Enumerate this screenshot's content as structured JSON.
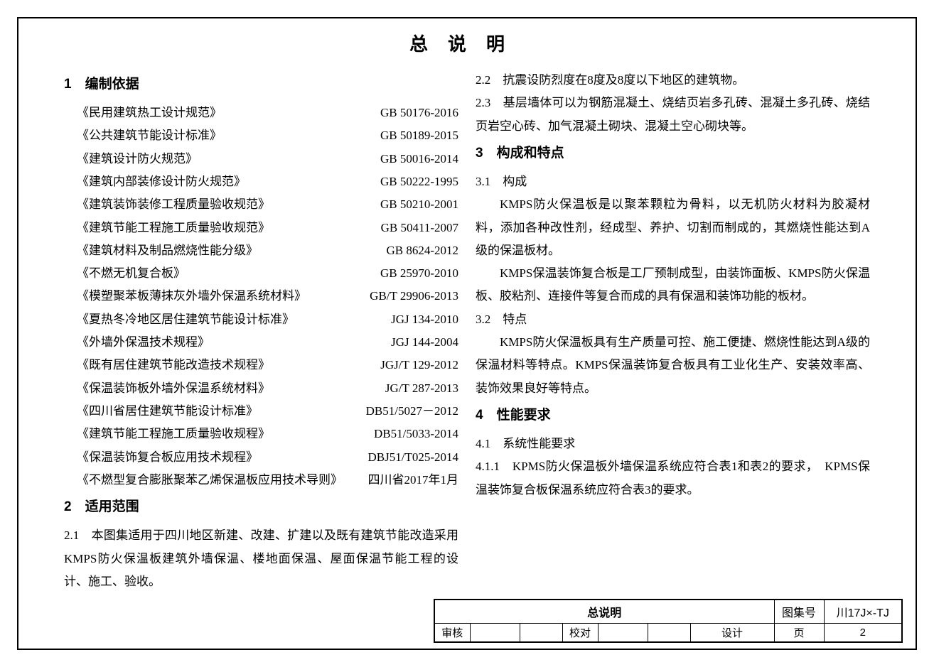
{
  "page_title": "总说明",
  "section1": {
    "num": "1",
    "title": "编制依据",
    "standards": [
      {
        "name": "《民用建筑热工设计规范》",
        "code": "GB 50176-2016"
      },
      {
        "name": "《公共建筑节能设计标准》",
        "code": "GB 50189-2015"
      },
      {
        "name": "《建筑设计防火规范》",
        "code": "GB 50016-2014"
      },
      {
        "name": "《建筑内部装修设计防火规范》",
        "code": "GB 50222-1995"
      },
      {
        "name": "《建筑装饰装修工程质量验收规范》",
        "code": "GB 50210-2001"
      },
      {
        "name": "《建筑节能工程施工质量验收规范》",
        "code": "GB 50411-2007"
      },
      {
        "name": "《建筑材料及制品燃烧性能分级》",
        "code": "GB 8624-2012"
      },
      {
        "name": "《不燃无机复合板》",
        "code": "GB 25970-2010"
      },
      {
        "name": "《模塑聚苯板薄抹灰外墙外保温系统材料》",
        "code": "GB/T 29906-2013"
      },
      {
        "name": "《夏热冬冷地区居住建筑节能设计标准》",
        "code": "JGJ 134-2010"
      },
      {
        "name": "《外墙外保温技术规程》",
        "code": "JGJ 144-2004"
      },
      {
        "name": "《既有居住建筑节能改造技术规程》",
        "code": "JGJ/T 129-2012"
      },
      {
        "name": "《保温装饰板外墙外保温系统材料》",
        "code": "JG/T 287-2013"
      },
      {
        "name": "《四川省居住建筑节能设计标准》",
        "code": "DB51/5027－2012"
      },
      {
        "name": "《建筑节能工程施工质量验收规程》",
        "code": "DB51/5033-2014"
      },
      {
        "name": "《保温装饰复合板应用技术规程》",
        "code": "DBJ51/T025-2014"
      },
      {
        "name": "《不燃型复合膨胀聚苯乙烯保温板应用技术导则》",
        "code": "四川省2017年1月"
      }
    ]
  },
  "section2": {
    "num": "2",
    "title": "适用范围",
    "p2_1": "2.1　本图集适用于四川地区新建、改建、扩建以及既有建筑节能改造采用KMPS防火保温板建筑外墙保温、楼地面保温、屋面保温节能工程的设计、施工、验收。",
    "p2_2": "2.2　抗震设防烈度在8度及8度以下地区的建筑物。",
    "p2_3": "2.3　基层墙体可以为钢筋混凝土、烧结页岩多孔砖、混凝土多孔砖、烧结页岩空心砖、加气混凝土砌块、混凝土空心砌块等。"
  },
  "section3": {
    "num": "3",
    "title": "构成和特点",
    "h3_1": "3.1　构成",
    "p3_1a": "KMPS防火保温板是以聚苯颗粒为骨料，以无机防火材料为胶凝材料，添加各种改性剂，经成型、养护、切割而制成的，其燃烧性能达到A级的保温板材。",
    "p3_1b": "KMPS保温装饰复合板是工厂预制成型，由装饰面板、KMPS防火保温板、胶粘剂、连接件等复合而成的具有保温和装饰功能的板材。",
    "h3_2": "3.2　特点",
    "p3_2": "KMPS防火保温板具有生产质量可控、施工便捷、燃烧性能达到A级的保温材料等特点。KMPS保温装饰复合板具有工业化生产、安装效率高、装饰效果良好等特点。"
  },
  "section4": {
    "num": "4",
    "title": "性能要求",
    "h4_1": "4.1　系统性能要求",
    "p4_1_1": "4.1.1　KPMS防火保温板外墙保温系统应符合表1和表2的要求，　KPMS保温装饰复合板保温系统应符合表3的要求。"
  },
  "title_block": {
    "main": "总说明",
    "atlas_label": "图集号",
    "atlas_value": "川17J×-TJ",
    "review": "审核",
    "proof": "校对",
    "design": "设计",
    "page_label": "页",
    "page_value": "2"
  }
}
